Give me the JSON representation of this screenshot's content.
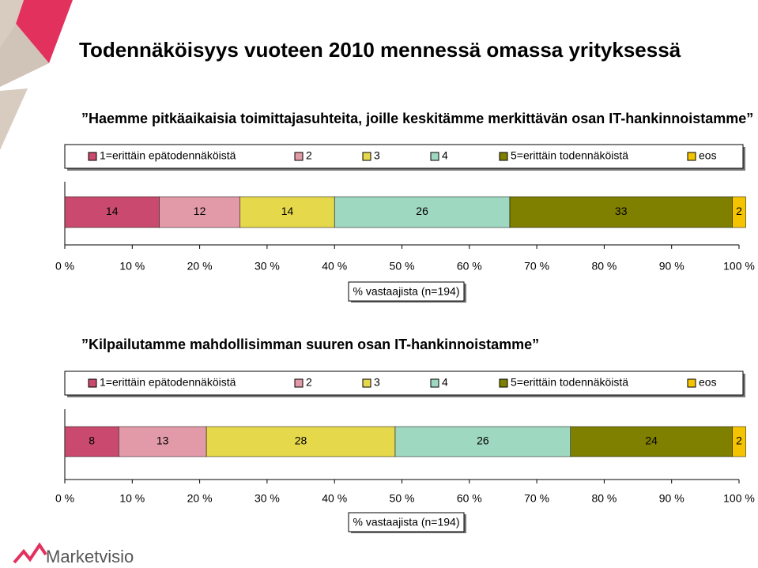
{
  "title": "Todennäköisyys vuoteen 2010 mennessä omassa yrityksessä",
  "logo": "Marketvisio",
  "chart_data": [
    {
      "type": "stacked-bar",
      "orientation": "horizontal",
      "title": "”Haemme pitkäaikaisia toimittajasuhteita, joille keskitämme merkittävän osan IT-hankinnoistamme”",
      "xlabel": "% vastaajista (n=194)",
      "xlim": [
        0,
        100
      ],
      "xticks": [
        {
          "value": 0,
          "label": "0 %"
        },
        {
          "value": 10,
          "label": "10 %"
        },
        {
          "value": 20,
          "label": "20 %"
        },
        {
          "value": 30,
          "label": "30 %"
        },
        {
          "value": 40,
          "label": "40 %"
        },
        {
          "value": 50,
          "label": "50 %"
        },
        {
          "value": 60,
          "label": "60 %"
        },
        {
          "value": 70,
          "label": "70 %"
        },
        {
          "value": 80,
          "label": "80 %"
        },
        {
          "value": 90,
          "label": "90 %"
        },
        {
          "value": 100,
          "label": "100 %"
        }
      ],
      "series": [
        {
          "name": "1=erittäin epätodennäköistä",
          "color": "#c94a6e",
          "values": [
            14
          ]
        },
        {
          "name": "2",
          "color": "#e29aa9",
          "values": [
            12
          ]
        },
        {
          "name": "3",
          "color": "#e6d84b",
          "values": [
            14
          ]
        },
        {
          "name": "4",
          "color": "#9fd8c0",
          "values": [
            26
          ]
        },
        {
          "name": "5=erittäin todennäköistä",
          "color": "#7f7f00",
          "values": [
            33
          ]
        },
        {
          "name": "eos",
          "color": "#f5c400",
          "values": [
            2
          ]
        }
      ]
    },
    {
      "type": "stacked-bar",
      "orientation": "horizontal",
      "title": "”Kilpailutamme mahdollisimman suuren osan IT-hankinnoistamme”",
      "xlabel": "% vastaajista (n=194)",
      "xlim": [
        0,
        100
      ],
      "xticks": [
        {
          "value": 0,
          "label": "0 %"
        },
        {
          "value": 10,
          "label": "10 %"
        },
        {
          "value": 20,
          "label": "20 %"
        },
        {
          "value": 30,
          "label": "30 %"
        },
        {
          "value": 40,
          "label": "40 %"
        },
        {
          "value": 50,
          "label": "50 %"
        },
        {
          "value": 60,
          "label": "60 %"
        },
        {
          "value": 70,
          "label": "70 %"
        },
        {
          "value": 80,
          "label": "80 %"
        },
        {
          "value": 90,
          "label": "90 %"
        },
        {
          "value": 100,
          "label": "100 %"
        }
      ],
      "series": [
        {
          "name": "1=erittäin epätodennäköistä",
          "color": "#c94a6e",
          "values": [
            8
          ]
        },
        {
          "name": "2",
          "color": "#e29aa9",
          "values": [
            13
          ]
        },
        {
          "name": "3",
          "color": "#e6d84b",
          "values": [
            28
          ]
        },
        {
          "name": "4",
          "color": "#9fd8c0",
          "values": [
            26
          ]
        },
        {
          "name": "5=erittäin todennäköistä",
          "color": "#7f7f00",
          "values": [
            24
          ]
        },
        {
          "name": "eos",
          "color": "#f5c400",
          "values": [
            2
          ]
        }
      ]
    }
  ]
}
